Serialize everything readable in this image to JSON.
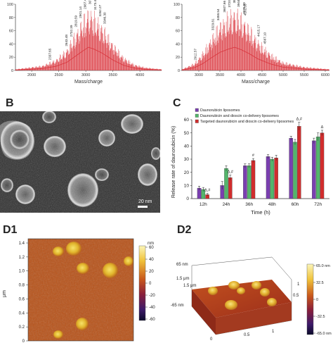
{
  "panels": {
    "b": "B",
    "c": "C",
    "d1": "D1",
    "d2": "D2"
  },
  "colors": {
    "spectrum": "#d9343c",
    "purple": "#7a3fb0",
    "green": "#53b56b",
    "red": "#d12d2d",
    "afm_bg": "#b5531b",
    "afm_grain": "#e8c23a"
  },
  "chart_data": [
    {
      "type": "line",
      "panel": "A-left",
      "xlabel": "Mass/charge",
      "xlim": [
        1700,
        4400
      ],
      "ylim": [
        0,
        100
      ],
      "xticks": [
        "2000",
        "2500",
        "3000",
        "3500",
        "4000"
      ],
      "yticks": [
        "0",
        "20",
        "40",
        "60",
        "80",
        "100"
      ],
      "envelope": {
        "x": [
          1700,
          2200,
          2450,
          2650,
          2800,
          2950,
          3050,
          3150,
          3300,
          3500,
          3700,
          3900,
          4100,
          4400
        ],
        "y": [
          2,
          8,
          18,
          35,
          60,
          85,
          100,
          92,
          75,
          45,
          22,
          10,
          5,
          2
        ]
      },
      "peak_labels": [
        "2337.65",
        "2643.48",
        "2732.39",
        "2819.59",
        "2901.14",
        "2987.41",
        "3076.77",
        "3173.46",
        "3262.27",
        "3346.30"
      ]
    },
    {
      "type": "line",
      "panel": "A-right",
      "xlabel": "Mass/charge",
      "xlim": [
        2600,
        6100
      ],
      "ylim": [
        0,
        100
      ],
      "xticks": [
        "3000",
        "3500",
        "4000",
        "4500",
        "5000",
        "5500",
        "6000"
      ],
      "yticks": [
        "0",
        "20",
        "40",
        "60",
        "80",
        "100"
      ],
      "envelope": {
        "x": [
          2600,
          2900,
          3100,
          3300,
          3500,
          3700,
          3850,
          4000,
          4200,
          4400,
          4700,
          5000,
          5500,
          6100
        ],
        "y": [
          2,
          12,
          30,
          55,
          78,
          92,
          100,
          90,
          72,
          50,
          28,
          14,
          6,
          2
        ]
      },
      "peak_labels": [
        "2912.57",
        "3329.81",
        "3458.54",
        "3607.66",
        "3720.91",
        "3842.65",
        "3944.24",
        "4076.89",
        "4102.33",
        "4415.17",
        "4567.10"
      ]
    },
    {
      "type": "bar",
      "panel": "C",
      "ylabel": "Release rate of daunorubicin (%)",
      "xlabel": "Time (h)",
      "ylim": [
        0,
        60
      ],
      "yticks": [
        "0",
        "10",
        "20",
        "30",
        "40",
        "50",
        "60"
      ],
      "categories": [
        "12h",
        "24h",
        "36h",
        "48h",
        "60h",
        "72h"
      ],
      "series": [
        {
          "name": "Daunorubicin liposomes",
          "values": [
            8,
            10,
            25,
            32,
            46,
            44
          ],
          "errors": [
            1.5,
            3,
            1.5,
            1.5,
            1.5,
            2
          ]
        },
        {
          "name": "Daunorubicin and dioscin co-delivery liposomes",
          "values": [
            7,
            23,
            25,
            30,
            43,
            47
          ],
          "errors": [
            1.5,
            2,
            1.5,
            1.5,
            2,
            3
          ]
        },
        {
          "name": "Targeted daunorubicin and dioscin co-delivery liposomes",
          "values": [
            3,
            16,
            29,
            31,
            55,
            50
          ],
          "errors": [
            1,
            2,
            1.5,
            2,
            3,
            2
          ]
        }
      ],
      "annotations": [
        {
          "category": "12h",
          "text": "Δ,#"
        },
        {
          "category": "24h",
          "text": "Δ,#"
        },
        {
          "category": "36h",
          "text": "#"
        },
        {
          "category": "60h",
          "text": "Δ,#"
        },
        {
          "category": "72h",
          "text": "Δ"
        }
      ],
      "legend_position": "top-left"
    },
    {
      "type": "heatmap",
      "panel": "D1",
      "ylabel": "μm",
      "yticks": [
        "0",
        "0.2",
        "0.4",
        "0.6",
        "0.8",
        "1.0",
        "1.2",
        "1.4"
      ],
      "colorbar": {
        "title": "nm",
        "ticks": [
          "60",
          "40",
          "20",
          "0",
          "-20",
          "-40",
          "-60"
        ]
      }
    },
    {
      "type": "heatmap",
      "panel": "D2",
      "zlabel": "65 nm",
      "zmin_label": "-65 nm",
      "axis_labels": [
        "1.5 μm",
        "1.5 μm",
        "0",
        "0.5",
        "1",
        "0.5",
        "1"
      ],
      "colorbar": {
        "ticks": [
          "65.0 nm",
          "32.5",
          "0",
          "-32.5",
          "-65.0 nm"
        ]
      }
    }
  ],
  "tem": {
    "scale_label": "20 nm"
  }
}
